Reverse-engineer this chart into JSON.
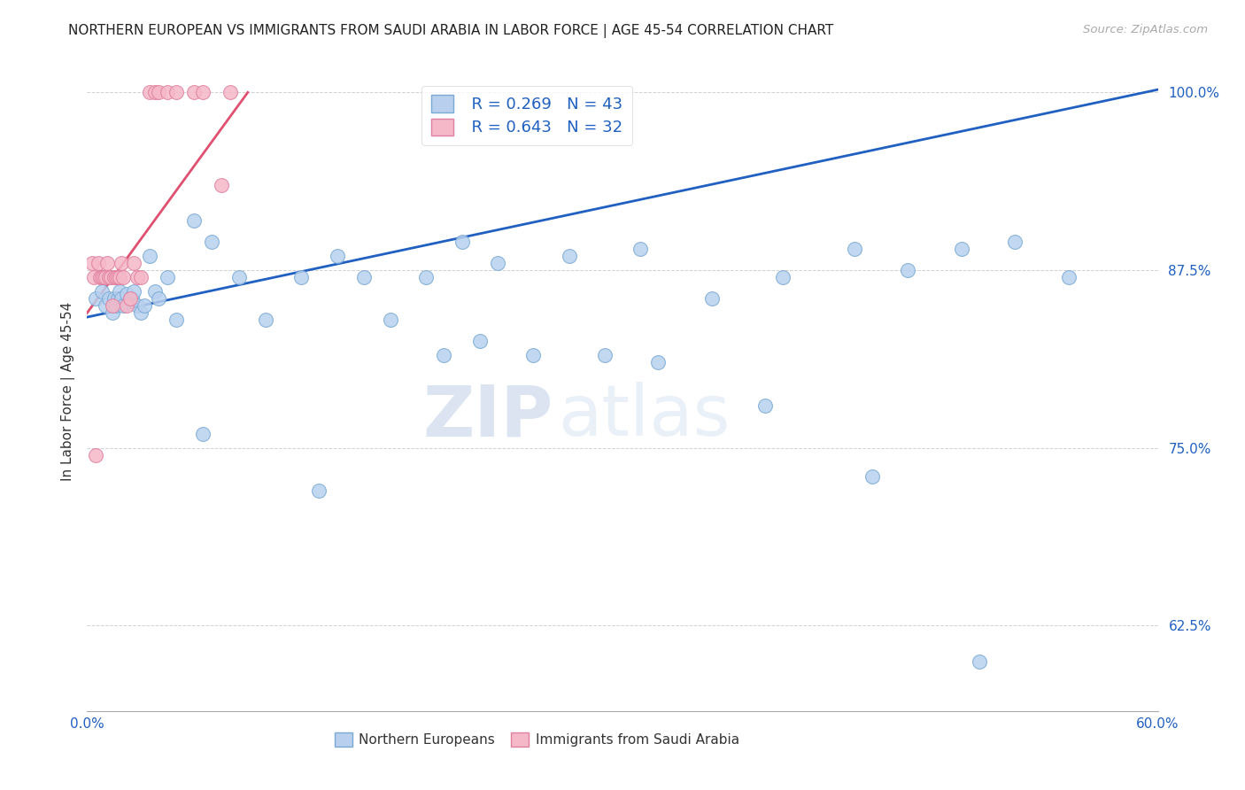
{
  "title": "NORTHERN EUROPEAN VS IMMIGRANTS FROM SAUDI ARABIA IN LABOR FORCE | AGE 45-54 CORRELATION CHART",
  "source": "Source: ZipAtlas.com",
  "ylabel": "In Labor Force | Age 45-54",
  "xmin": 0.0,
  "xmax": 0.6,
  "ymin": 0.565,
  "ymax": 1.015,
  "yticks": [
    0.625,
    0.75,
    0.875,
    1.0
  ],
  "ytick_labels": [
    "62.5%",
    "75.0%",
    "87.5%",
    "100.0%"
  ],
  "xticks": [
    0.0,
    0.1,
    0.2,
    0.3,
    0.4,
    0.5,
    0.6
  ],
  "xtick_labels": [
    "0.0%",
    "",
    "",
    "",
    "",
    "",
    "60.0%"
  ],
  "blue_R": 0.269,
  "blue_N": 43,
  "pink_R": 0.643,
  "pink_N": 32,
  "blue_color": "#b8d0ee",
  "blue_edge": "#7aaad4",
  "pink_color": "#f5b8c8",
  "pink_edge": "#e080a0",
  "blue_line_color": "#2060c0",
  "pink_line_color": "#e05070",
  "watermark_zip": "ZIP",
  "watermark_atlas": "atlas",
  "blue_x": [
    0.005,
    0.008,
    0.01,
    0.012,
    0.014,
    0.015,
    0.016,
    0.017,
    0.018,
    0.019,
    0.02,
    0.022,
    0.024,
    0.025,
    0.026,
    0.028,
    0.03,
    0.032,
    0.035,
    0.038,
    0.04,
    0.045,
    0.05,
    0.06,
    0.07,
    0.085,
    0.1,
    0.12,
    0.14,
    0.155,
    0.17,
    0.19,
    0.21,
    0.23,
    0.27,
    0.31,
    0.35,
    0.39,
    0.43,
    0.46,
    0.49,
    0.52,
    0.55
  ],
  "blue_y": [
    0.855,
    0.86,
    0.85,
    0.855,
    0.845,
    0.855,
    0.85,
    0.855,
    0.86,
    0.855,
    0.85,
    0.858,
    0.855,
    0.855,
    0.86,
    0.85,
    0.845,
    0.85,
    0.885,
    0.86,
    0.855,
    0.87,
    0.84,
    0.91,
    0.895,
    0.87,
    0.84,
    0.87,
    0.885,
    0.87,
    0.84,
    0.87,
    0.895,
    0.88,
    0.885,
    0.89,
    0.855,
    0.87,
    0.89,
    0.875,
    0.89,
    0.895,
    0.87
  ],
  "blue_x_outliers": [
    0.065,
    0.13,
    0.2,
    0.22,
    0.25,
    0.29,
    0.32,
    0.38,
    0.44,
    0.5
  ],
  "blue_y_outliers": [
    0.76,
    0.72,
    0.815,
    0.825,
    0.815,
    0.815,
    0.81,
    0.78,
    0.73,
    0.6
  ],
  "pink_x": [
    0.003,
    0.004,
    0.005,
    0.006,
    0.007,
    0.008,
    0.009,
    0.01,
    0.011,
    0.012,
    0.013,
    0.014,
    0.015,
    0.016,
    0.017,
    0.018,
    0.019,
    0.02,
    0.022,
    0.024,
    0.026,
    0.028,
    0.03,
    0.035,
    0.038,
    0.04,
    0.045,
    0.05,
    0.06,
    0.065,
    0.075,
    0.08
  ],
  "pink_y": [
    0.88,
    0.87,
    0.745,
    0.88,
    0.87,
    0.87,
    0.87,
    0.87,
    0.88,
    0.87,
    0.87,
    0.85,
    0.87,
    0.87,
    0.87,
    0.87,
    0.88,
    0.87,
    0.85,
    0.855,
    0.88,
    0.87,
    0.87,
    1.0,
    1.0,
    1.0,
    1.0,
    1.0,
    1.0,
    1.0,
    0.935,
    1.0
  ],
  "blue_trend_x": [
    0.0,
    0.6
  ],
  "blue_trend_y": [
    0.842,
    1.002
  ],
  "pink_trend_x": [
    0.0,
    0.09
  ],
  "pink_trend_y": [
    0.845,
    1.0
  ]
}
